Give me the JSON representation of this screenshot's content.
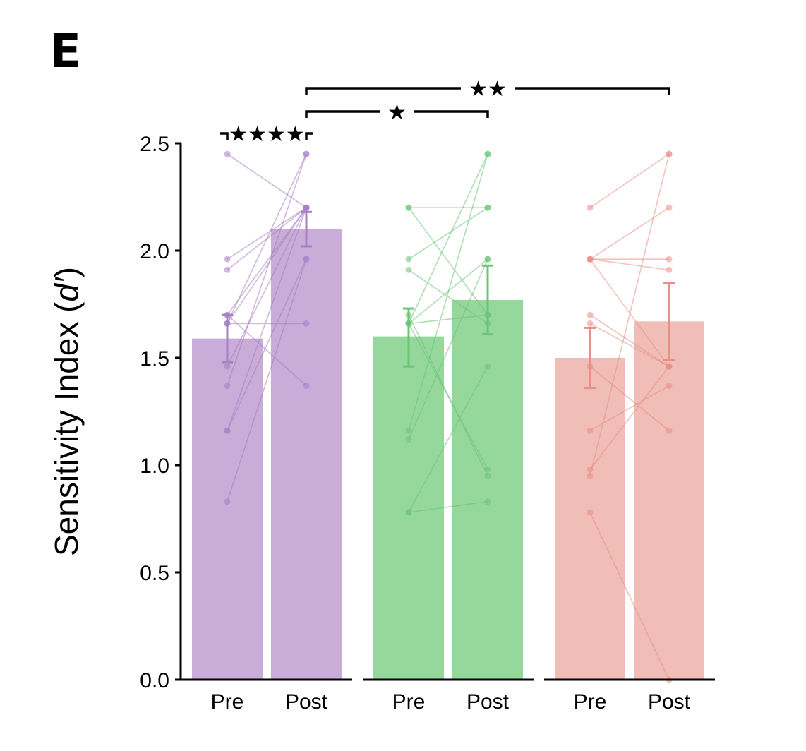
{
  "panel_label": "E",
  "chart_data": {
    "type": "bar",
    "ylabel": "Sensitivity Index (d′)",
    "ylabel_parts": {
      "main": "Sensitivity Index (",
      "italic": "d′",
      "close": ")"
    },
    "ylim": [
      0,
      2.5
    ],
    "yticks": [
      "0.0",
      "0.5",
      "1.0",
      "1.5",
      "2.0",
      "2.5"
    ],
    "grid": false,
    "categories": [
      "Pre",
      "Post"
    ],
    "groups": [
      {
        "bar_color": "#c9acd8",
        "point_color": "#a77fc5",
        "values": [
          1.59,
          2.1
        ],
        "errors": [
          [
            1.48,
            1.7
          ],
          [
            2.02,
            2.18
          ]
        ],
        "subjects": [
          [
            2.45,
            2.2
          ],
          [
            1.96,
            2.2
          ],
          [
            1.91,
            2.2
          ],
          [
            1.7,
            2.2
          ],
          [
            1.66,
            2.45
          ],
          [
            1.66,
            1.66
          ],
          [
            1.66,
            2.2
          ],
          [
            1.46,
            2.2
          ],
          [
            1.37,
            2.45
          ],
          [
            1.16,
            2.2
          ],
          [
            1.16,
            1.96
          ],
          [
            0.83,
            1.96
          ],
          [
            1.7,
            1.37
          ]
        ]
      },
      {
        "bar_color": "#96d89c",
        "point_color": "#6cc476",
        "values": [
          1.6,
          1.77
        ],
        "errors": [
          [
            1.46,
            1.73
          ],
          [
            1.61,
            1.93
          ]
        ],
        "subjects": [
          [
            2.2,
            2.2
          ],
          [
            2.2,
            1.7
          ],
          [
            1.96,
            2.2
          ],
          [
            1.91,
            1.66
          ],
          [
            1.66,
            2.45
          ],
          [
            1.66,
            1.96
          ],
          [
            1.66,
            0.98
          ],
          [
            1.66,
            1.7
          ],
          [
            1.16,
            2.45
          ],
          [
            1.12,
            1.96
          ],
          [
            0.78,
            1.46
          ],
          [
            0.78,
            0.83
          ],
          [
            1.7,
            0.95
          ]
        ]
      },
      {
        "bar_color": "#f0bdb7",
        "point_color": "#ea8f87",
        "values": [
          1.5,
          1.67
        ],
        "errors": [
          [
            1.36,
            1.64
          ],
          [
            1.49,
            1.85
          ]
        ],
        "subjects": [
          [
            2.2,
            2.45
          ],
          [
            1.96,
            2.2
          ],
          [
            1.96,
            1.96
          ],
          [
            1.96,
            1.91
          ],
          [
            1.7,
            1.46
          ],
          [
            1.66,
            1.46
          ],
          [
            1.46,
            1.16
          ],
          [
            1.16,
            1.37
          ],
          [
            0.98,
            1.46
          ],
          [
            0.95,
            2.45
          ],
          [
            0.78,
            0.0
          ],
          [
            1.96,
            1.46
          ]
        ]
      }
    ],
    "significance": [
      {
        "from": [
          0,
          0
        ],
        "to": [
          0,
          1
        ],
        "label": "★★★★"
      },
      {
        "from": [
          0,
          1
        ],
        "to": [
          1,
          1
        ],
        "label": "★"
      },
      {
        "from": [
          0,
          1
        ],
        "to": [
          2,
          1
        ],
        "label": "★★"
      }
    ]
  }
}
